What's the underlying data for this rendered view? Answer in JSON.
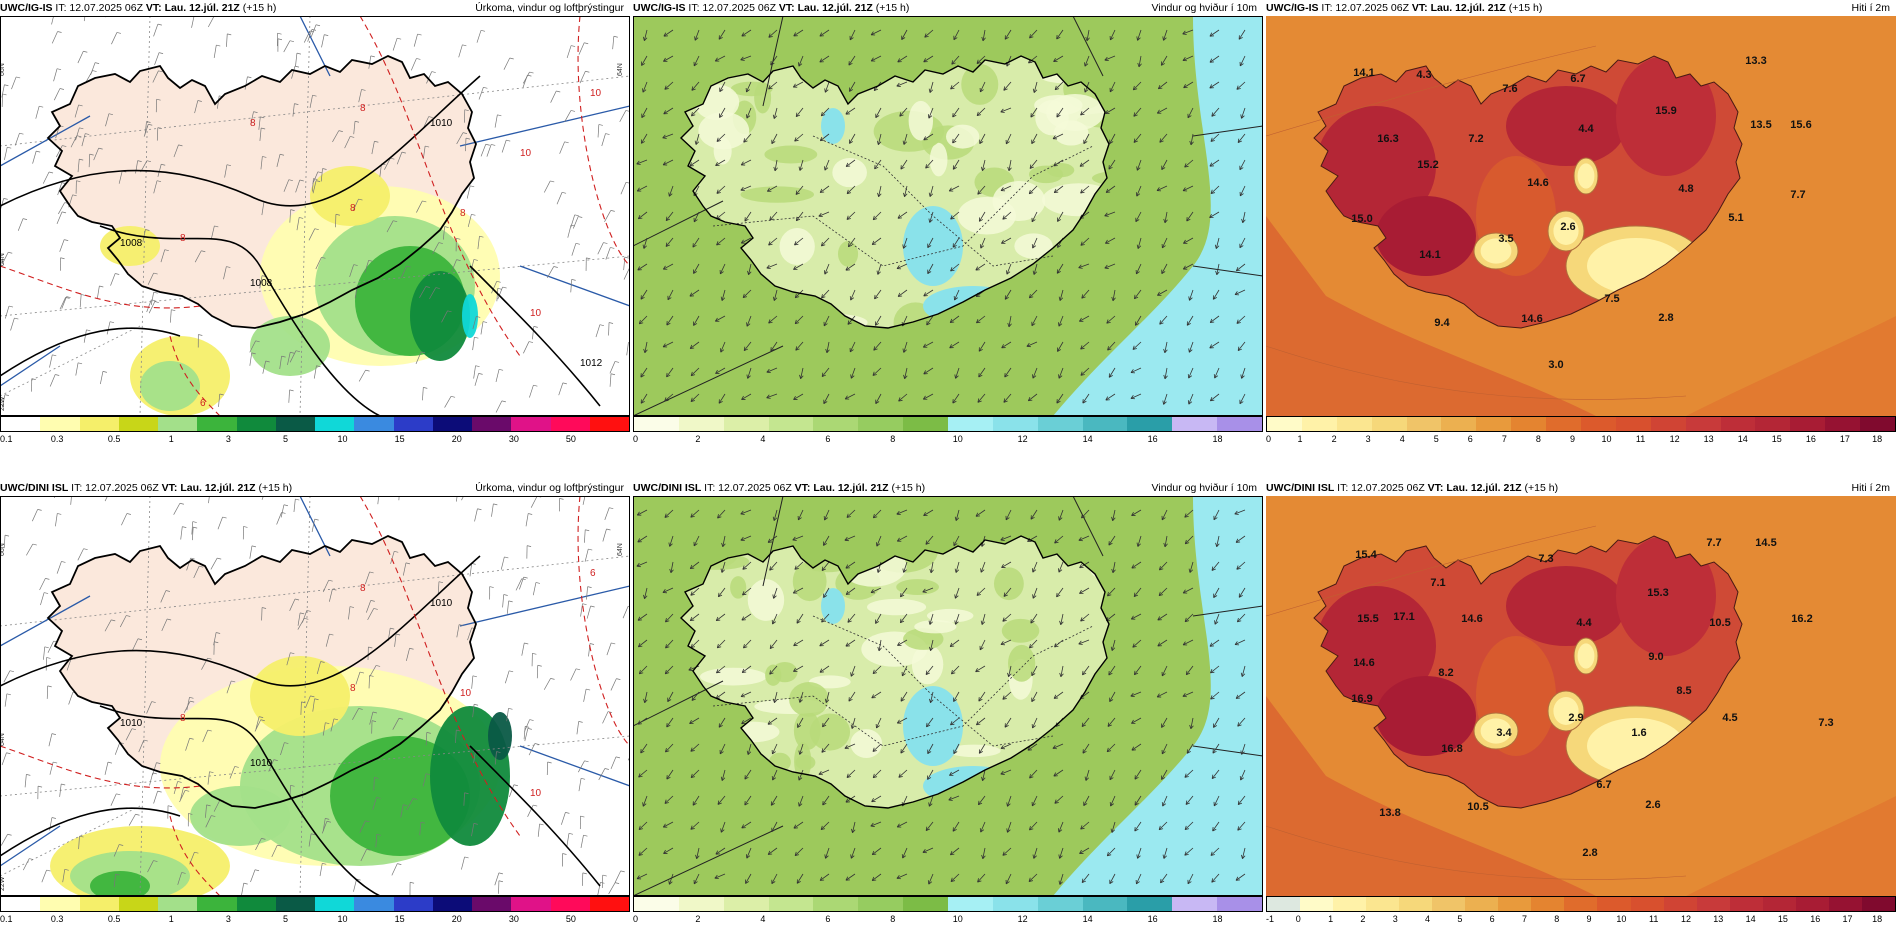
{
  "panels": [
    {
      "id": "igis-precip",
      "model": "UWC/IG-IS",
      "it": "IT: 12.07.2025 06Z",
      "vt": "VT: Lau. 12.júl. 21Z",
      "lead": "(+15 h)",
      "right_title": "Úrkoma, vindur og loftþrýstingur",
      "kind": "precip",
      "isobars": [
        "1008",
        "1008",
        "1010",
        "1012"
      ],
      "temp_lines": [
        "8",
        "8",
        "8",
        "8",
        "10",
        "10",
        "10",
        "8",
        "6"
      ],
      "lat_labels": [
        "66N",
        "64N",
        "64N",
        "22W"
      ],
      "legend": {
        "colors": [
          "#ffffff",
          "#fffdb0",
          "#f5ef6a",
          "#c8d618",
          "#a3e08a",
          "#3cb43c",
          "#108a3c",
          "#0a5a46",
          "#10d8d8",
          "#3a8ae0",
          "#2c3cc8",
          "#0c0c78",
          "#6a0a6a",
          "#e01288",
          "#ff0a5a",
          "#ff1010"
        ],
        "ticks": [
          "0.1",
          "0.3",
          "0.5",
          "1",
          "3",
          "5",
          "10",
          "15",
          "20",
          "30",
          "50"
        ]
      }
    },
    {
      "id": "igis-wind",
      "model": "UWC/IG-IS",
      "it": "IT: 12.07.2025 06Z",
      "vt": "VT: Lau. 12.júl. 21Z",
      "lead": "(+15 h)",
      "right_title": "Vindur og hviður í 10m",
      "kind": "wind",
      "legend": {
        "colors": [
          "#fbfde8",
          "#f0f8c8",
          "#dcefa8",
          "#c4e690",
          "#abd874",
          "#96cc60",
          "#7cbc46",
          "#a6f0f4",
          "#8ae2ea",
          "#6acfd6",
          "#4ab8c0",
          "#2a9ea8",
          "#c8b8f4",
          "#a890e8"
        ],
        "ticks": [
          "0",
          "2",
          "4",
          "6",
          "8",
          "10",
          "12",
          "14",
          "16",
          "18"
        ]
      }
    },
    {
      "id": "igis-temp",
      "model": "UWC/IG-IS",
      "it": "IT: 12.07.2025 06Z",
      "vt": "VT: Lau. 12.júl. 21Z",
      "lead": "(+15 h)",
      "right_title": "Hiti í 2m",
      "kind": "temp",
      "values": [
        "14.1",
        "4.3",
        "7.6",
        "6.7",
        "13.3",
        "16.3",
        "15.9",
        "13.5",
        "15.6",
        "7.2",
        "4.4",
        "15.2",
        "14.6",
        "4.8",
        "7.7",
        "15.0",
        "3.5",
        "2.6",
        "5.1",
        "14.1",
        "7.5",
        "9.4",
        "14.6",
        "2.8",
        "3.0"
      ],
      "legend": {
        "colors": [
          "#fffbc8",
          "#fff2a8",
          "#fbe690",
          "#f6d87a",
          "#f0c468",
          "#ecb050",
          "#e89a3c",
          "#e48430",
          "#e06c2c",
          "#dc5a2c",
          "#d8502e",
          "#d04434",
          "#c83a3a",
          "#be2e38",
          "#b42636",
          "#a81c34",
          "#961232",
          "#800a2e"
        ],
        "ticks": [
          "0",
          "1",
          "2",
          "3",
          "4",
          "5",
          "6",
          "7",
          "8",
          "9",
          "10",
          "11",
          "12",
          "13",
          "14",
          "15",
          "16",
          "17",
          "18"
        ]
      }
    },
    {
      "id": "dini-precip",
      "model": "UWC/DINI ISL",
      "it": "IT: 12.07.2025 06Z",
      "vt": "VT: Lau. 12.júl. 21Z",
      "lead": "(+15 h)",
      "right_title": "Úrkoma, vindur og loftþrýstingur",
      "kind": "precip",
      "isobars": [
        "1010",
        "1010",
        "1010"
      ],
      "temp_lines": [
        "8",
        "8",
        "8",
        "10",
        "10",
        "6"
      ],
      "lat_labels": [
        "66N",
        "64N",
        "64N",
        "22W"
      ],
      "legend": {
        "colors": [
          "#ffffff",
          "#fffdb0",
          "#f5ef6a",
          "#c8d618",
          "#a3e08a",
          "#3cb43c",
          "#108a3c",
          "#0a5a46",
          "#10d8d8",
          "#3a8ae0",
          "#2c3cc8",
          "#0c0c78",
          "#6a0a6a",
          "#e01288",
          "#ff0a5a",
          "#ff1010"
        ],
        "ticks": [
          "0.1",
          "0.3",
          "0.5",
          "1",
          "3",
          "5",
          "10",
          "15",
          "20",
          "30",
          "50"
        ]
      }
    },
    {
      "id": "dini-wind",
      "model": "UWC/DINI ISL",
      "it": "IT: 12.07.2025 06Z",
      "vt": "VT: Lau. 12.júl. 21Z",
      "lead": "(+15 h)",
      "right_title": "Vindur og hviður í 10m",
      "kind": "wind",
      "legend": {
        "colors": [
          "#fbfde8",
          "#f0f8c8",
          "#dcefa8",
          "#c4e690",
          "#abd874",
          "#96cc60",
          "#7cbc46",
          "#a6f0f4",
          "#8ae2ea",
          "#6acfd6",
          "#4ab8c0",
          "#2a9ea8",
          "#c8b8f4",
          "#a890e8"
        ],
        "ticks": [
          "0",
          "2",
          "4",
          "6",
          "8",
          "10",
          "12",
          "14",
          "16",
          "18"
        ]
      }
    },
    {
      "id": "dini-temp",
      "model": "UWC/DINI ISL",
      "it": "IT: 12.07.2025 06Z",
      "vt": "VT: Lau. 12.júl. 21Z",
      "lead": "(+15 h)",
      "right_title": "Hiti í 2m",
      "kind": "temp",
      "values": [
        "15.4",
        "7.3",
        "7.7",
        "14.5",
        "7.1",
        "15.3",
        "15.5",
        "17.1",
        "14.6",
        "4.4",
        "10.5",
        "16.2",
        "9.0",
        "14.6",
        "8.2",
        "8.5",
        "7.3",
        "16.9",
        "3.4",
        "2.9",
        "4.5",
        "1.6",
        "16.8",
        "6.7",
        "10.5",
        "2.6",
        "13.8",
        "2.8"
      ],
      "legend": {
        "colors": [
          "#dde8e0",
          "#fffbc8",
          "#fff2a8",
          "#fbe690",
          "#f6d87a",
          "#f0c468",
          "#ecb050",
          "#e89a3c",
          "#e48430",
          "#e06c2c",
          "#dc5a2c",
          "#d8502e",
          "#d04434",
          "#c83a3a",
          "#be2e38",
          "#b42636",
          "#a81c34",
          "#961232",
          "#800a2e"
        ],
        "ticks": [
          "-1",
          "0",
          "1",
          "2",
          "3",
          "4",
          "5",
          "6",
          "7",
          "8",
          "9",
          "10",
          "11",
          "12",
          "13",
          "14",
          "15",
          "16",
          "17",
          "18"
        ]
      }
    }
  ]
}
